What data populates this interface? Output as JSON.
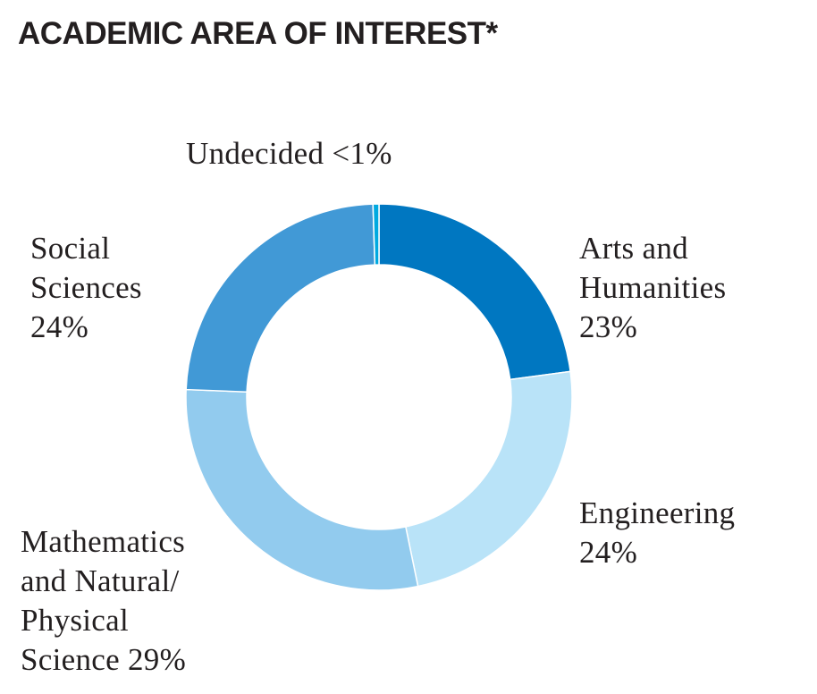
{
  "title": "ACADEMIC AREA OF INTEREST*",
  "chart_data": {
    "type": "pie",
    "title": "ACADEMIC AREA OF INTEREST*",
    "style": "donut",
    "slices": [
      {
        "name": "Arts and Humanities",
        "label_lines": [
          "Arts and",
          "Humanities",
          "23%"
        ],
        "value": 23,
        "color": "#0077c1"
      },
      {
        "name": "Engineering",
        "label_lines": [
          "Engineering",
          "24%"
        ],
        "value": 24,
        "color": "#b9e3f8"
      },
      {
        "name": "Mathematics and Natural/Physical Science",
        "label_lines": [
          "Mathematics",
          "and Natural/",
          "Physical",
          "Science 29%"
        ],
        "value": 29,
        "color": "#92cbee"
      },
      {
        "name": "Social Sciences",
        "label_lines": [
          "Social",
          "Sciences",
          "24%"
        ],
        "value": 24,
        "color": "#4199d6"
      },
      {
        "name": "Undecided",
        "label_lines": [
          "Undecided <1%"
        ],
        "value": 0.5,
        "color": "#00a9e0"
      }
    ]
  }
}
